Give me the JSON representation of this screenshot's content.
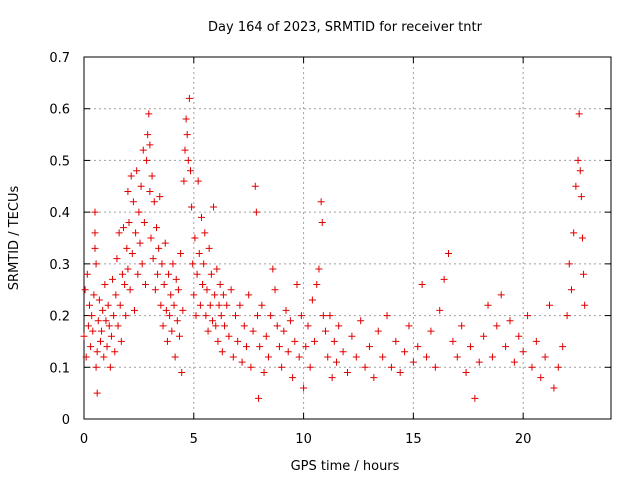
{
  "chart_data": {
    "type": "scatter",
    "title": "Day 164 of 2023, SRMTID for receiver tntr",
    "xlabel": "GPS time / hours",
    "ylabel": "SRMTID / TECUs",
    "xlim": [
      0,
      24
    ],
    "ylim": [
      0,
      0.7
    ],
    "x_ticks": [
      0,
      5,
      10,
      15,
      20
    ],
    "x_tick_labels": [
      "0",
      "5",
      "10",
      "15",
      "20"
    ],
    "y_ticks": [
      0,
      0.1,
      0.2,
      0.3,
      0.4,
      0.5,
      0.6,
      0.7
    ],
    "y_tick_labels": [
      "0",
      "0.1",
      "0.2",
      "0.3",
      "0.4",
      "0.5",
      "0.6",
      "0.7"
    ],
    "grid": true,
    "marker": "+",
    "color": "#e00000",
    "series": [
      {
        "name": "SRMTID",
        "points": [
          [
            0.0,
            0.16
          ],
          [
            0.05,
            0.25
          ],
          [
            0.1,
            0.12
          ],
          [
            0.15,
            0.28
          ],
          [
            0.2,
            0.18
          ],
          [
            0.25,
            0.22
          ],
          [
            0.3,
            0.14
          ],
          [
            0.35,
            0.2
          ],
          [
            0.4,
            0.17
          ],
          [
            0.45,
            0.24
          ],
          [
            0.5,
            0.4
          ],
          [
            0.5,
            0.36
          ],
          [
            0.5,
            0.33
          ],
          [
            0.55,
            0.3
          ],
          [
            0.55,
            0.1
          ],
          [
            0.6,
            0.13
          ],
          [
            0.6,
            0.05
          ],
          [
            0.65,
            0.19
          ],
          [
            0.7,
            0.23
          ],
          [
            0.75,
            0.15
          ],
          [
            0.8,
            0.17
          ],
          [
            0.85,
            0.21
          ],
          [
            0.9,
            0.12
          ],
          [
            0.95,
            0.26
          ],
          [
            1.0,
            0.19
          ],
          [
            1.05,
            0.14
          ],
          [
            1.1,
            0.22
          ],
          [
            1.15,
            0.18
          ],
          [
            1.2,
            0.1
          ],
          [
            1.25,
            0.16
          ],
          [
            1.3,
            0.27
          ],
          [
            1.35,
            0.2
          ],
          [
            1.4,
            0.13
          ],
          [
            1.45,
            0.24
          ],
          [
            1.5,
            0.31
          ],
          [
            1.55,
            0.18
          ],
          [
            1.6,
            0.36
          ],
          [
            1.65,
            0.22
          ],
          [
            1.7,
            0.15
          ],
          [
            1.75,
            0.28
          ],
          [
            1.8,
            0.37
          ],
          [
            1.85,
            0.26
          ],
          [
            1.9,
            0.2
          ],
          [
            1.95,
            0.33
          ],
          [
            2.0,
            0.44
          ],
          [
            2.0,
            0.29
          ],
          [
            2.05,
            0.38
          ],
          [
            2.1,
            0.25
          ],
          [
            2.15,
            0.47
          ],
          [
            2.2,
            0.32
          ],
          [
            2.25,
            0.42
          ],
          [
            2.3,
            0.21
          ],
          [
            2.35,
            0.36
          ],
          [
            2.4,
            0.48
          ],
          [
            2.45,
            0.28
          ],
          [
            2.5,
            0.4
          ],
          [
            2.55,
            0.34
          ],
          [
            2.6,
            0.45
          ],
          [
            2.65,
            0.3
          ],
          [
            2.7,
            0.52
          ],
          [
            2.75,
            0.38
          ],
          [
            2.8,
            0.26
          ],
          [
            2.85,
            0.5
          ],
          [
            2.9,
            0.55
          ],
          [
            2.95,
            0.59
          ],
          [
            3.0,
            0.53
          ],
          [
            3.0,
            0.44
          ],
          [
            3.05,
            0.35
          ],
          [
            3.1,
            0.47
          ],
          [
            3.15,
            0.31
          ],
          [
            3.2,
            0.42
          ],
          [
            3.25,
            0.25
          ],
          [
            3.3,
            0.37
          ],
          [
            3.35,
            0.28
          ],
          [
            3.4,
            0.33
          ],
          [
            3.45,
            0.43
          ],
          [
            3.5,
            0.22
          ],
          [
            3.55,
            0.3
          ],
          [
            3.6,
            0.18
          ],
          [
            3.65,
            0.26
          ],
          [
            3.7,
            0.34
          ],
          [
            3.75,
            0.21
          ],
          [
            3.8,
            0.15
          ],
          [
            3.85,
            0.28
          ],
          [
            3.9,
            0.2
          ],
          [
            3.95,
            0.24
          ],
          [
            4.0,
            0.17
          ],
          [
            4.05,
            0.3
          ],
          [
            4.1,
            0.22
          ],
          [
            4.15,
            0.12
          ],
          [
            4.2,
            0.27
          ],
          [
            4.25,
            0.19
          ],
          [
            4.3,
            0.25
          ],
          [
            4.35,
            0.16
          ],
          [
            4.4,
            0.32
          ],
          [
            4.45,
            0.09
          ],
          [
            4.5,
            0.21
          ],
          [
            4.55,
            0.46
          ],
          [
            4.6,
            0.52
          ],
          [
            4.65,
            0.58
          ],
          [
            4.7,
            0.55
          ],
          [
            4.75,
            0.5
          ],
          [
            4.8,
            0.62
          ],
          [
            4.85,
            0.48
          ],
          [
            4.9,
            0.41
          ],
          [
            4.95,
            0.3
          ],
          [
            5.0,
            0.24
          ],
          [
            5.05,
            0.35
          ],
          [
            5.1,
            0.2
          ],
          [
            5.15,
            0.28
          ],
          [
            5.2,
            0.46
          ],
          [
            5.25,
            0.32
          ],
          [
            5.3,
            0.22
          ],
          [
            5.35,
            0.39
          ],
          [
            5.4,
            0.26
          ],
          [
            5.45,
            0.3
          ],
          [
            5.5,
            0.36
          ],
          [
            5.55,
            0.2
          ],
          [
            5.6,
            0.25
          ],
          [
            5.65,
            0.17
          ],
          [
            5.7,
            0.33
          ],
          [
            5.75,
            0.22
          ],
          [
            5.8,
            0.28
          ],
          [
            5.85,
            0.19
          ],
          [
            5.9,
            0.41
          ],
          [
            5.95,
            0.24
          ],
          [
            6.0,
            0.18
          ],
          [
            6.05,
            0.29
          ],
          [
            6.1,
            0.15
          ],
          [
            6.15,
            0.22
          ],
          [
            6.2,
            0.26
          ],
          [
            6.25,
            0.2
          ],
          [
            6.3,
            0.13
          ],
          [
            6.35,
            0.24
          ],
          [
            6.4,
            0.18
          ],
          [
            6.5,
            0.22
          ],
          [
            6.6,
            0.16
          ],
          [
            6.7,
            0.25
          ],
          [
            6.8,
            0.12
          ],
          [
            6.9,
            0.2
          ],
          [
            7.0,
            0.15
          ],
          [
            7.1,
            0.22
          ],
          [
            7.2,
            0.11
          ],
          [
            7.3,
            0.18
          ],
          [
            7.4,
            0.14
          ],
          [
            7.5,
            0.24
          ],
          [
            7.6,
            0.1
          ],
          [
            7.7,
            0.17
          ],
          [
            7.8,
            0.45
          ],
          [
            7.85,
            0.4
          ],
          [
            7.9,
            0.2
          ],
          [
            7.95,
            0.04
          ],
          [
            8.0,
            0.14
          ],
          [
            8.1,
            0.22
          ],
          [
            8.2,
            0.09
          ],
          [
            8.3,
            0.16
          ],
          [
            8.4,
            0.12
          ],
          [
            8.5,
            0.2
          ],
          [
            8.6,
            0.29
          ],
          [
            8.7,
            0.25
          ],
          [
            8.8,
            0.18
          ],
          [
            8.9,
            0.14
          ],
          [
            9.0,
            0.1
          ],
          [
            9.1,
            0.17
          ],
          [
            9.2,
            0.21
          ],
          [
            9.3,
            0.13
          ],
          [
            9.4,
            0.19
          ],
          [
            9.5,
            0.08
          ],
          [
            9.6,
            0.15
          ],
          [
            9.7,
            0.26
          ],
          [
            9.8,
            0.12
          ],
          [
            9.9,
            0.2
          ],
          [
            10.0,
            0.06
          ],
          [
            10.1,
            0.14
          ],
          [
            10.2,
            0.18
          ],
          [
            10.3,
            0.1
          ],
          [
            10.4,
            0.23
          ],
          [
            10.5,
            0.15
          ],
          [
            10.6,
            0.26
          ],
          [
            10.7,
            0.29
          ],
          [
            10.8,
            0.42
          ],
          [
            10.85,
            0.38
          ],
          [
            10.9,
            0.2
          ],
          [
            11.0,
            0.17
          ],
          [
            11.1,
            0.12
          ],
          [
            11.2,
            0.2
          ],
          [
            11.3,
            0.08
          ],
          [
            11.4,
            0.15
          ],
          [
            11.5,
            0.11
          ],
          [
            11.6,
            0.18
          ],
          [
            11.8,
            0.13
          ],
          [
            12.0,
            0.09
          ],
          [
            12.2,
            0.16
          ],
          [
            12.4,
            0.12
          ],
          [
            12.6,
            0.19
          ],
          [
            12.8,
            0.1
          ],
          [
            13.0,
            0.14
          ],
          [
            13.2,
            0.08
          ],
          [
            13.4,
            0.17
          ],
          [
            13.6,
            0.12
          ],
          [
            13.8,
            0.2
          ],
          [
            14.0,
            0.1
          ],
          [
            14.2,
            0.15
          ],
          [
            14.4,
            0.09
          ],
          [
            14.6,
            0.13
          ],
          [
            14.8,
            0.18
          ],
          [
            15.0,
            0.11
          ],
          [
            15.2,
            0.14
          ],
          [
            15.4,
            0.26
          ],
          [
            15.6,
            0.12
          ],
          [
            15.8,
            0.17
          ],
          [
            16.0,
            0.1
          ],
          [
            16.2,
            0.21
          ],
          [
            16.4,
            0.27
          ],
          [
            16.6,
            0.32
          ],
          [
            16.8,
            0.15
          ],
          [
            17.0,
            0.12
          ],
          [
            17.2,
            0.18
          ],
          [
            17.4,
            0.09
          ],
          [
            17.6,
            0.14
          ],
          [
            17.8,
            0.04
          ],
          [
            18.0,
            0.11
          ],
          [
            18.2,
            0.16
          ],
          [
            18.4,
            0.22
          ],
          [
            18.6,
            0.12
          ],
          [
            18.8,
            0.18
          ],
          [
            19.0,
            0.24
          ],
          [
            19.2,
            0.14
          ],
          [
            19.4,
            0.19
          ],
          [
            19.6,
            0.11
          ],
          [
            19.8,
            0.16
          ],
          [
            20.0,
            0.13
          ],
          [
            20.2,
            0.2
          ],
          [
            20.4,
            0.1
          ],
          [
            20.6,
            0.15
          ],
          [
            20.8,
            0.08
          ],
          [
            21.0,
            0.12
          ],
          [
            21.2,
            0.22
          ],
          [
            21.4,
            0.06
          ],
          [
            21.6,
            0.1
          ],
          [
            21.8,
            0.14
          ],
          [
            22.0,
            0.2
          ],
          [
            22.1,
            0.3
          ],
          [
            22.2,
            0.25
          ],
          [
            22.3,
            0.36
          ],
          [
            22.4,
            0.45
          ],
          [
            22.5,
            0.5
          ],
          [
            22.55,
            0.59
          ],
          [
            22.6,
            0.48
          ],
          [
            22.65,
            0.43
          ],
          [
            22.7,
            0.35
          ],
          [
            22.75,
            0.28
          ],
          [
            22.8,
            0.22
          ]
        ]
      }
    ]
  }
}
